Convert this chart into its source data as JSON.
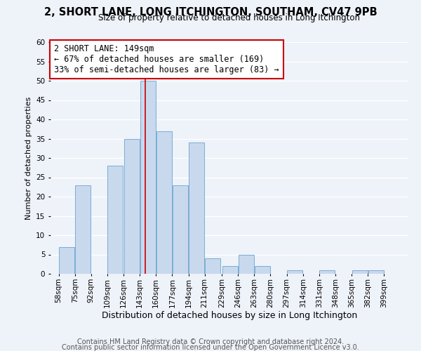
{
  "title": "2, SHORT LANE, LONG ITCHINGTON, SOUTHAM, CV47 9PB",
  "subtitle": "Size of property relative to detached houses in Long Itchington",
  "xlabel": "Distribution of detached houses by size in Long Itchington",
  "ylabel": "Number of detached properties",
  "bar_color": "#c8d9ee",
  "bar_edge_color": "#7aadd4",
  "bins": [
    58,
    75,
    92,
    109,
    126,
    143,
    160,
    177,
    194,
    211,
    229,
    246,
    263,
    280,
    297,
    314,
    331,
    348,
    365,
    382,
    399
  ],
  "counts": [
    7,
    23,
    0,
    28,
    35,
    50,
    37,
    23,
    34,
    4,
    2,
    5,
    2,
    0,
    1,
    0,
    1,
    0,
    1,
    1
  ],
  "property_size": 149,
  "vline_color": "#cc0000",
  "annotation_line1": "2 SHORT LANE: 149sqm",
  "annotation_line2": "← 67% of detached houses are smaller (169)",
  "annotation_line3": "33% of semi-detached houses are larger (83) →",
  "annotation_box_color": "white",
  "annotation_box_edge": "#cc0000",
  "ylim": [
    0,
    60
  ],
  "yticks": [
    0,
    5,
    10,
    15,
    20,
    25,
    30,
    35,
    40,
    45,
    50,
    55,
    60
  ],
  "footer1": "Contains HM Land Registry data © Crown copyright and database right 2024.",
  "footer2": "Contains public sector information licensed under the Open Government Licence v3.0.",
  "background_color": "#eef2f9",
  "grid_color": "white",
  "title_fontsize": 10.5,
  "subtitle_fontsize": 8.5,
  "xlabel_fontsize": 9,
  "ylabel_fontsize": 8,
  "tick_label_fontsize": 7.5,
  "annotation_fontsize": 8.5,
  "footer_fontsize": 7
}
